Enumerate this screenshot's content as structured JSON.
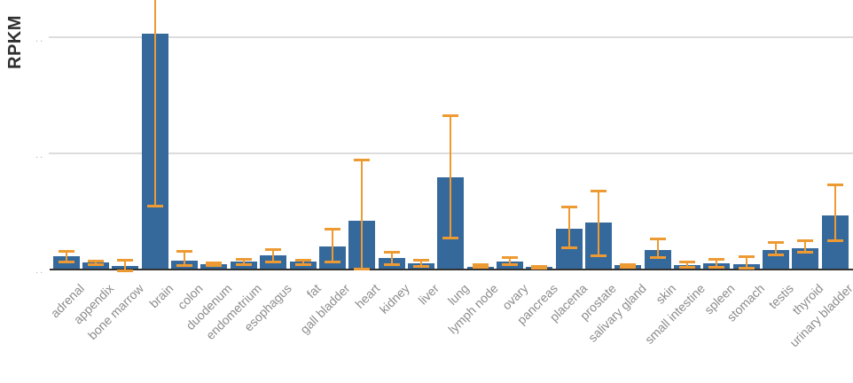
{
  "chart_data": {
    "type": "bar",
    "title": "",
    "ylabel": "RPKM",
    "xlabel": "",
    "legend": null,
    "grid": "horizontal",
    "categories": [
      "adrenal",
      "appendix",
      "bone marrow",
      "brain",
      "colon",
      "duodenum",
      "endometrium",
      "esophagus",
      "fat",
      "gall bladder",
      "heart",
      "kidney",
      "liver",
      "lung",
      "lymph node",
      "ovary",
      "pancreas",
      "placenta",
      "prostate",
      "salivary gland",
      "skin",
      "small intestine",
      "spleen",
      "stomach",
      "testis",
      "thyroid",
      "urinary bladder"
    ],
    "values": [
      0.104,
      0.054,
      0.023,
      2.03,
      0.069,
      0.038,
      0.058,
      0.115,
      0.058,
      0.192,
      0.414,
      0.092,
      0.046,
      0.786,
      0.019,
      0.058,
      0.015,
      0.345,
      0.395,
      0.027,
      0.161,
      0.031,
      0.046,
      0.038,
      0.161,
      0.18,
      0.46
    ],
    "error_high": [
      0.157,
      0.069,
      0.077,
      2.6,
      0.153,
      0.05,
      0.081,
      0.17,
      0.077,
      0.345,
      0.939,
      0.142,
      0.077,
      1.323,
      0.035,
      0.096,
      0.023,
      0.533,
      0.671,
      0.038,
      0.257,
      0.058,
      0.084,
      0.111,
      0.23,
      0.242,
      0.725
    ],
    "error_low": [
      0.065,
      0.038,
      -0.015,
      0.541,
      0.031,
      0.027,
      0.035,
      0.058,
      0.038,
      0.058,
      0.0,
      0.042,
      0.023,
      0.268,
      0.012,
      0.035,
      0.008,
      0.184,
      0.115,
      0.015,
      0.096,
      0.019,
      0.015,
      0.008,
      0.123,
      0.146,
      0.245
    ],
    "y_ticks": [
      0,
      1,
      2
    ],
    "y_tick_labels": [
      "..",
      "..",
      ".."
    ],
    "ylim": [
      0,
      2.33
    ],
    "value_units": "gridline units (middle gridline = 1, top gridline = 2; y tick labels are truncated to '..' in the image)",
    "bar_color": "#35699c",
    "error_color": "#ee9a33",
    "axis_color": "#333333",
    "gridline_color": "#dcdcdc",
    "tick_label_color": "#b5b5b5",
    "x_label_color": "#8c8c8c"
  }
}
